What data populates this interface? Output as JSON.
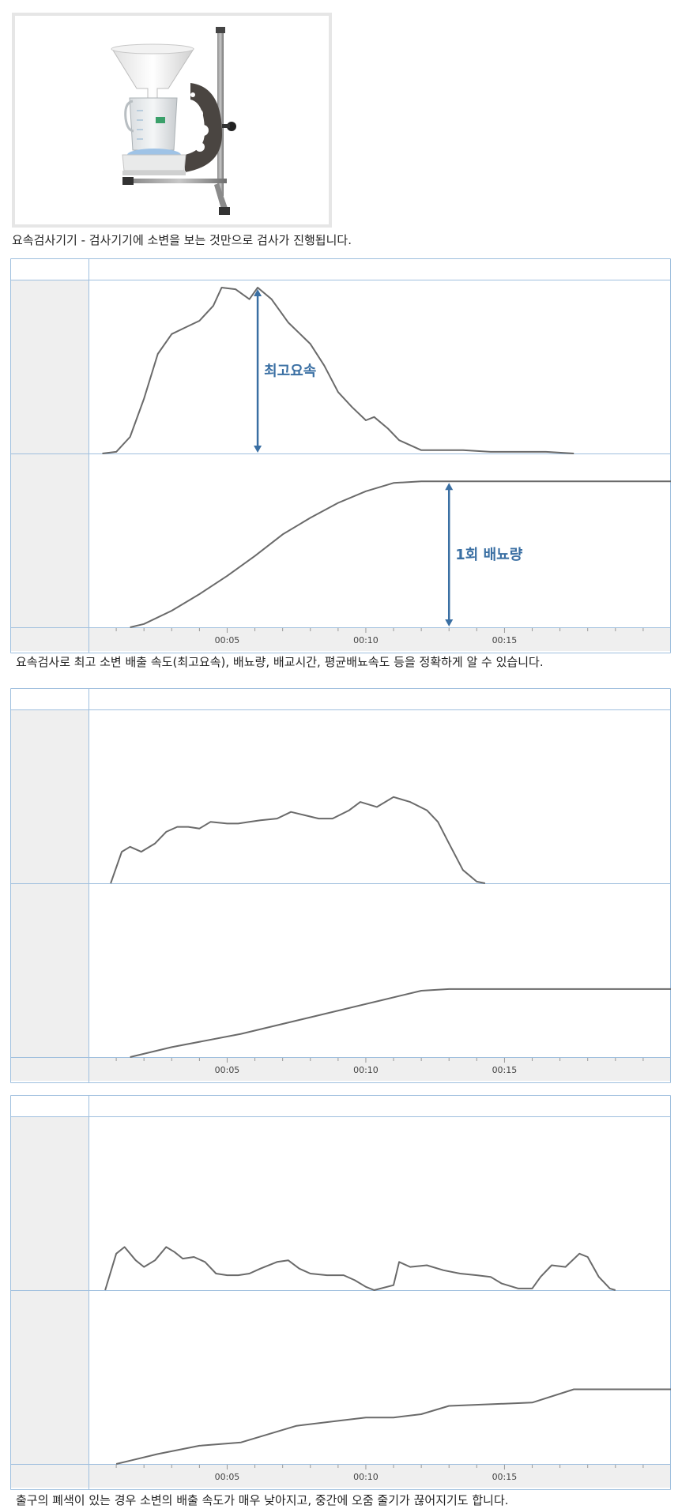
{
  "device": {
    "image_label": "urine-flowmeter-device",
    "caption": "요속검사기기 - 검사기기에 소변을 보는 것만으로 검사가 진행됩니다."
  },
  "captions": [
    "요속검사로 최고 소변 배출 속도(최고요속), 배뇨량, 배교시간, 평균배뇨속도 등을 정확하게 알 수 있습니다.",
    "출구의 폐색이 있는 경우 소변의 배출 속도가 매우 낮아지고, 중간에 오줌 줄기가 끊어지기도 합니다."
  ],
  "colors": {
    "grid_line": "#9fbfde",
    "curve": "#6a6a6a",
    "annotation": "#3a6fa3",
    "label_column": "#efefef"
  },
  "chart_data": [
    {
      "type": "line",
      "x_unit": "time (mm:ss)",
      "xlim": [
        0,
        21
      ],
      "x_ticks": [
        5,
        10,
        15
      ],
      "x_tick_labels": [
        "00:05",
        "00:10",
        "00:15"
      ],
      "x_minor_tick_step": 1,
      "panels": [
        {
          "role": "flow-rate",
          "ylim": [
            0,
            1
          ],
          "points": [
            [
              0.5,
              0
            ],
            [
              1.0,
              0.01
            ],
            [
              1.5,
              0.1
            ],
            [
              2.0,
              0.33
            ],
            [
              2.5,
              0.6
            ],
            [
              3.0,
              0.72
            ],
            [
              3.5,
              0.76
            ],
            [
              4.0,
              0.8
            ],
            [
              4.5,
              0.89
            ],
            [
              4.8,
              1.0
            ],
            [
              5.3,
              0.99
            ],
            [
              5.8,
              0.93
            ],
            [
              6.1,
              1.0
            ],
            [
              6.6,
              0.93
            ],
            [
              7.2,
              0.79
            ],
            [
              8.0,
              0.66
            ],
            [
              8.5,
              0.53
            ],
            [
              9.0,
              0.37
            ],
            [
              9.5,
              0.28
            ],
            [
              10.0,
              0.2
            ],
            [
              10.3,
              0.22
            ],
            [
              10.8,
              0.15
            ],
            [
              11.2,
              0.08
            ],
            [
              12.0,
              0.02
            ],
            [
              13.5,
              0.02
            ],
            [
              14.5,
              0.01
            ],
            [
              15.5,
              0.01
            ],
            [
              16.5,
              0.01
            ],
            [
              17.5,
              0
            ]
          ],
          "annotation": {
            "label": "최고요속",
            "x": 6.1
          }
        },
        {
          "role": "voided-volume",
          "ylim": [
            0,
            1
          ],
          "points": [
            [
              1.5,
              0
            ],
            [
              2.0,
              0.02
            ],
            [
              3.0,
              0.1
            ],
            [
              4.0,
              0.2
            ],
            [
              5.0,
              0.31
            ],
            [
              6.0,
              0.43
            ],
            [
              7.0,
              0.56
            ],
            [
              8.0,
              0.66
            ],
            [
              9.0,
              0.75
            ],
            [
              10.0,
              0.82
            ],
            [
              11.0,
              0.87
            ],
            [
              12.0,
              0.88
            ],
            [
              13.0,
              0.88
            ],
            [
              21.0,
              0.88
            ]
          ],
          "annotation": {
            "label": "1회 배뇨량",
            "x": 13.0
          }
        }
      ]
    },
    {
      "type": "line",
      "x_unit": "time (mm:ss)",
      "xlim": [
        0,
        21
      ],
      "x_ticks": [
        5,
        10,
        15
      ],
      "x_tick_labels": [
        "00:05",
        "00:10",
        "00:15"
      ],
      "x_minor_tick_step": 1,
      "panels": [
        {
          "role": "flow-rate",
          "ylim": [
            0,
            1
          ],
          "points": [
            [
              0.8,
              0
            ],
            [
              1.2,
              0.19
            ],
            [
              1.5,
              0.22
            ],
            [
              1.9,
              0.19
            ],
            [
              2.4,
              0.24
            ],
            [
              2.8,
              0.31
            ],
            [
              3.2,
              0.34
            ],
            [
              3.6,
              0.34
            ],
            [
              4.0,
              0.33
            ],
            [
              4.4,
              0.37
            ],
            [
              5.0,
              0.36
            ],
            [
              5.4,
              0.36
            ],
            [
              5.8,
              0.37
            ],
            [
              6.2,
              0.38
            ],
            [
              6.8,
              0.39
            ],
            [
              7.3,
              0.43
            ],
            [
              7.8,
              0.41
            ],
            [
              8.3,
              0.39
            ],
            [
              8.8,
              0.39
            ],
            [
              9.4,
              0.44
            ],
            [
              9.8,
              0.49
            ],
            [
              10.4,
              0.46
            ],
            [
              11.0,
              0.52
            ],
            [
              11.6,
              0.49
            ],
            [
              12.2,
              0.44
            ],
            [
              12.6,
              0.37
            ],
            [
              13.0,
              0.24
            ],
            [
              13.5,
              0.08
            ],
            [
              14.0,
              0.01
            ],
            [
              14.3,
              0
            ]
          ]
        },
        {
          "role": "voided-volume",
          "ylim": [
            0,
            1
          ],
          "points": [
            [
              1.5,
              0
            ],
            [
              3.0,
              0.06
            ],
            [
              5.5,
              0.14
            ],
            [
              8.0,
              0.24
            ],
            [
              10.5,
              0.34
            ],
            [
              12.0,
              0.4
            ],
            [
              13.0,
              0.41
            ],
            [
              21.0,
              0.41
            ]
          ]
        }
      ]
    },
    {
      "type": "line",
      "x_unit": "time (mm:ss)",
      "xlim": [
        0,
        21
      ],
      "x_ticks": [
        5,
        10,
        15
      ],
      "x_tick_labels": [
        "00:05",
        "00:10",
        "00:15"
      ],
      "x_minor_tick_step": 1,
      "panels": [
        {
          "role": "flow-rate",
          "ylim": [
            0,
            1
          ],
          "points": [
            [
              0.6,
              0
            ],
            [
              1.0,
              0.22
            ],
            [
              1.3,
              0.26
            ],
            [
              1.7,
              0.18
            ],
            [
              2.0,
              0.14
            ],
            [
              2.4,
              0.18
            ],
            [
              2.8,
              0.26
            ],
            [
              3.1,
              0.23
            ],
            [
              3.4,
              0.19
            ],
            [
              3.8,
              0.2
            ],
            [
              4.2,
              0.17
            ],
            [
              4.6,
              0.1
            ],
            [
              5.0,
              0.09
            ],
            [
              5.4,
              0.09
            ],
            [
              5.8,
              0.1
            ],
            [
              6.2,
              0.13
            ],
            [
              6.8,
              0.17
            ],
            [
              7.2,
              0.18
            ],
            [
              7.6,
              0.13
            ],
            [
              8.0,
              0.1
            ],
            [
              8.6,
              0.09
            ],
            [
              9.2,
              0.09
            ],
            [
              9.6,
              0.06
            ],
            [
              10.0,
              0.02
            ],
            [
              10.3,
              0
            ],
            [
              11.0,
              0.03
            ],
            [
              11.2,
              0.17
            ],
            [
              11.6,
              0.14
            ],
            [
              12.2,
              0.15
            ],
            [
              12.8,
              0.12
            ],
            [
              13.4,
              0.1
            ],
            [
              14.0,
              0.09
            ],
            [
              14.5,
              0.08
            ],
            [
              14.9,
              0.04
            ],
            [
              15.5,
              0.01
            ],
            [
              16.0,
              0.01
            ],
            [
              16.3,
              0.08
            ],
            [
              16.7,
              0.15
            ],
            [
              17.2,
              0.14
            ],
            [
              17.7,
              0.22
            ],
            [
              18.0,
              0.2
            ],
            [
              18.4,
              0.08
            ],
            [
              18.8,
              0.01
            ],
            [
              19.0,
              0
            ]
          ]
        },
        {
          "role": "voided-volume",
          "ylim": [
            0,
            1
          ],
          "points": [
            [
              1.0,
              0
            ],
            [
              1.5,
              0.02
            ],
            [
              2.5,
              0.06
            ],
            [
              4.0,
              0.11
            ],
            [
              5.5,
              0.13
            ],
            [
              6.5,
              0.18
            ],
            [
              7.5,
              0.23
            ],
            [
              9.0,
              0.26
            ],
            [
              10.0,
              0.28
            ],
            [
              11.0,
              0.28
            ],
            [
              12.0,
              0.3
            ],
            [
              13.0,
              0.35
            ],
            [
              14.5,
              0.36
            ],
            [
              16.0,
              0.37
            ],
            [
              17.5,
              0.45
            ],
            [
              21.0,
              0.45
            ]
          ]
        }
      ]
    }
  ]
}
